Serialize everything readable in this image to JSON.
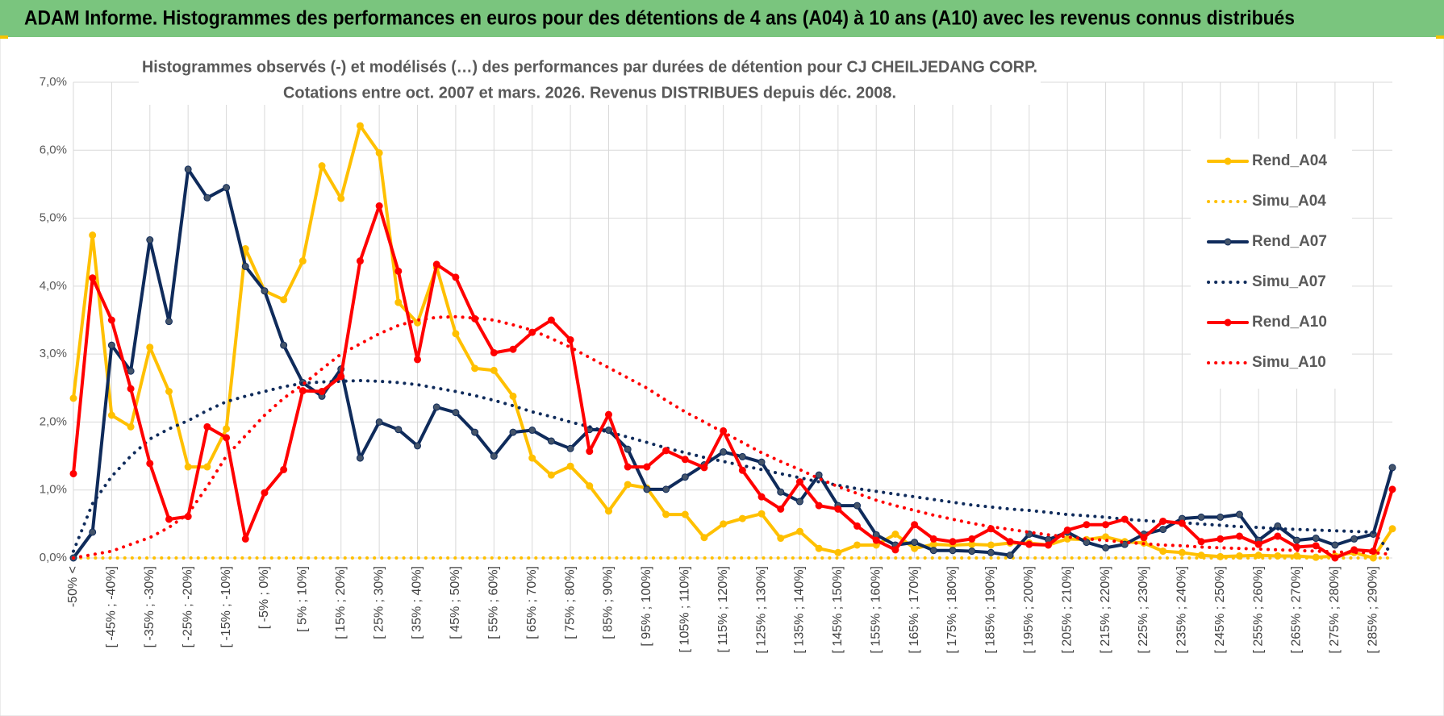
{
  "header_title": "ADAM Informe. Histogrammes des performances en euros pour des détentions de 4 ans (A04) à 10 ans (A10) avec les revenus connus distribués",
  "chart_data": {
    "type": "line",
    "title": "Histogrammes observés (-) et modélisés (…) des performances par durées de détention pour CJ CHEILJEDANG CORP.",
    "subtitle": "Cotations entre oct. 2007 et mars. 2026. Revenus DISTRIBUES depuis déc. 2008.",
    "categories": [
      "-50% <",
      null,
      "[ -45% ; -40%]",
      null,
      "[ -35% ; -30%]",
      null,
      "[ -25% ; -20%]",
      null,
      "[ -15% ; -10%]",
      null,
      "[ -5% ; 0%]",
      null,
      "[ 5% ; 10%]",
      null,
      "[ 15% ; 20%]",
      null,
      "[ 25% ; 30%]",
      null,
      "[ 35% ; 40%]",
      null,
      "[ 45% ; 50%]",
      null,
      "[ 55% ; 60%]",
      null,
      "[ 65% ; 70%]",
      null,
      "[ 75% ; 80%]",
      null,
      "[ 85% ; 90%]",
      null,
      "[ 95% ; 100%]",
      null,
      "[ 105% ; 110%]",
      null,
      "[ 115% ; 120%]",
      null,
      "[ 125% ; 130%]",
      null,
      "[ 135% ; 140%]",
      null,
      "[ 145% ; 150%]",
      null,
      "[ 155% ; 160%]",
      null,
      "[ 165% ; 170%]",
      null,
      "[ 175% ; 180%]",
      null,
      "[ 185% ; 190%]",
      null,
      "[ 195% ; 200%]",
      null,
      "[ 205% ; 210%]",
      null,
      "[ 215% ; 220%]",
      null,
      "[ 225% ; 230%]",
      null,
      "[ 235% ; 240%]",
      null,
      "[ 245% ; 250%]",
      null,
      "[ 255% ; 260%]",
      null,
      "[ 265% ; 270%]",
      null,
      "[ 275% ; 280%]",
      null,
      "[ 285% ; 290%]",
      null
    ],
    "series": [
      {
        "name": "Rend_A04",
        "color": "#FFC000",
        "line_style": "solid",
        "markers": true,
        "values": [
          2.35,
          4.75,
          2.1,
          1.93,
          3.1,
          2.45,
          1.34,
          1.34,
          1.9,
          4.55,
          3.93,
          3.8,
          4.37,
          5.77,
          5.29,
          6.36,
          5.96,
          3.76,
          3.46,
          4.28,
          3.3,
          2.79,
          2.76,
          2.38,
          1.47,
          1.22,
          1.35,
          1.06,
          0.69,
          1.08,
          1.03,
          0.64,
          0.64,
          0.3,
          0.5,
          0.58,
          0.65,
          0.29,
          0.39,
          0.14,
          0.08,
          0.19,
          0.19,
          0.35,
          0.14,
          0.2,
          0.19,
          0.2,
          0.19,
          0.22,
          0.22,
          0.19,
          0.28,
          0.27,
          0.31,
          0.24,
          0.22,
          0.1,
          0.08,
          0.04,
          0.02,
          0.03,
          0.04,
          0.03,
          0.03,
          0.01,
          0.03,
          0.08,
          0,
          0.43
        ]
      },
      {
        "name": "Simu_A04",
        "color": "#FFC000",
        "line_style": "dotted",
        "markers": false,
        "values": [
          0,
          0,
          0,
          0,
          0,
          0,
          0,
          0,
          0,
          0,
          0,
          0,
          0,
          0,
          0,
          0,
          0,
          0,
          0,
          0,
          0,
          0,
          0,
          0,
          0,
          0,
          0,
          0,
          0,
          0,
          0,
          0,
          0,
          0,
          0,
          0,
          0,
          0,
          0,
          0,
          0,
          0,
          0,
          0,
          0,
          0,
          0,
          0,
          0,
          0,
          0,
          0,
          0,
          0,
          0,
          0,
          0,
          0,
          0,
          0,
          0,
          0,
          0,
          0,
          0,
          0,
          0,
          0,
          0,
          0
        ]
      },
      {
        "name": "Rend_A07",
        "color": "#0F2B5B",
        "marker_color": "#44546A",
        "line_style": "solid",
        "markers": true,
        "values": [
          0,
          0.38,
          3.13,
          2.75,
          4.68,
          3.48,
          5.72,
          5.3,
          5.45,
          4.29,
          3.93,
          3.13,
          2.58,
          2.38,
          2.78,
          1.47,
          2.0,
          1.89,
          1.65,
          2.22,
          2.14,
          1.85,
          1.5,
          1.85,
          1.88,
          1.72,
          1.61,
          1.89,
          1.88,
          1.6,
          1.01,
          1.01,
          1.19,
          1.37,
          1.56,
          1.49,
          1.41,
          0.97,
          0.83,
          1.22,
          0.77,
          0.77,
          0.34,
          0.19,
          0.23,
          0.11,
          0.11,
          0.1,
          0.08,
          0.04,
          0.35,
          0.27,
          0.38,
          0.23,
          0.15,
          0.2,
          0.35,
          0.42,
          0.58,
          0.6,
          0.6,
          0.64,
          0.26,
          0.47,
          0.26,
          0.29,
          0.19,
          0.28,
          0.35,
          1.33
        ]
      },
      {
        "name": "Simu_A07",
        "color": "#0F2B5B",
        "line_style": "dotted",
        "markers": false,
        "values": [
          0.1,
          0.8,
          1.2,
          1.5,
          1.75,
          1.9,
          2.02,
          2.17,
          2.3,
          2.38,
          2.45,
          2.52,
          2.57,
          2.59,
          2.6,
          2.61,
          2.6,
          2.58,
          2.55,
          2.5,
          2.45,
          2.39,
          2.32,
          2.24,
          2.15,
          2.08,
          2.0,
          1.93,
          1.85,
          1.78,
          1.7,
          1.62,
          1.55,
          1.48,
          1.42,
          1.36,
          1.3,
          1.24,
          1.18,
          1.12,
          1.07,
          1.02,
          0.98,
          0.94,
          0.9,
          0.86,
          0.82,
          0.78,
          0.75,
          0.72,
          0.7,
          0.67,
          0.64,
          0.62,
          0.6,
          0.57,
          0.55,
          0.53,
          0.52,
          0.5,
          0.48,
          0.46,
          0.45,
          0.43,
          0.42,
          0.41,
          0.4,
          0.39,
          0.38,
          0.05
        ]
      },
      {
        "name": "Rend_A10",
        "color": "#FF0000",
        "line_style": "solid",
        "markers": true,
        "values": [
          1.24,
          4.12,
          3.5,
          2.49,
          1.39,
          0.57,
          0.61,
          1.93,
          1.77,
          0.28,
          0.96,
          1.3,
          2.46,
          2.45,
          2.67,
          4.37,
          5.18,
          4.22,
          2.92,
          4.32,
          4.13,
          3.52,
          3.02,
          3.07,
          3.32,
          3.5,
          3.21,
          1.57,
          2.11,
          1.34,
          1.34,
          1.58,
          1.45,
          1.33,
          1.87,
          1.29,
          0.9,
          0.72,
          1.12,
          0.77,
          0.72,
          0.47,
          0.26,
          0.12,
          0.49,
          0.28,
          0.24,
          0.28,
          0.43,
          0.24,
          0.2,
          0.19,
          0.41,
          0.49,
          0.49,
          0.57,
          0.3,
          0.54,
          0.51,
          0.24,
          0.28,
          0.32,
          0.2,
          0.32,
          0.16,
          0.18,
          0,
          0.12,
          0.1,
          1.01
        ]
      },
      {
        "name": "Simu_A10",
        "color": "#FF0000",
        "line_style": "dotted",
        "markers": false,
        "values": [
          0,
          0.05,
          0.1,
          0.2,
          0.3,
          0.45,
          0.65,
          1.05,
          1.5,
          1.8,
          2.1,
          2.35,
          2.55,
          2.78,
          3.0,
          3.15,
          3.3,
          3.42,
          3.5,
          3.54,
          3.55,
          3.53,
          3.5,
          3.43,
          3.35,
          3.23,
          3.1,
          2.95,
          2.8,
          2.65,
          2.5,
          2.32,
          2.15,
          2.0,
          1.85,
          1.7,
          1.55,
          1.42,
          1.3,
          1.17,
          1.05,
          0.95,
          0.85,
          0.77,
          0.7,
          0.63,
          0.57,
          0.51,
          0.46,
          0.42,
          0.38,
          0.34,
          0.31,
          0.28,
          0.26,
          0.23,
          0.21,
          0.19,
          0.18,
          0.16,
          0.15,
          0.14,
          0.13,
          0.12,
          0.11,
          0.1,
          0.09,
          0.08,
          0.08,
          0.05
        ]
      }
    ],
    "ylim": [
      0,
      7
    ],
    "yticks": [
      {
        "value": 0,
        "label": "0,0%"
      },
      {
        "value": 1,
        "label": "1,0%"
      },
      {
        "value": 2,
        "label": "2,0%"
      },
      {
        "value": 3,
        "label": "3,0%"
      },
      {
        "value": 4,
        "label": "4,0%"
      },
      {
        "value": 5,
        "label": "5,0%"
      },
      {
        "value": 6,
        "label": "6,0%"
      },
      {
        "value": 7,
        "label": "7,0%"
      }
    ],
    "grid": true,
    "legend": "right"
  }
}
